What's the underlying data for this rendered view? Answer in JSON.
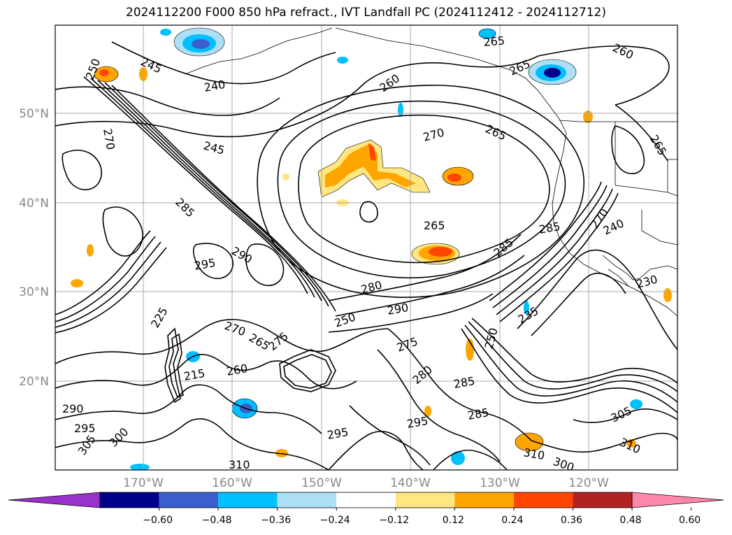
{
  "title": "2024112200 F000 850 hPa refract., IVT Landfall PC (2024112412 - 2024112712)",
  "map": {
    "lat_labels": [
      "50°N",
      "40°N",
      "30°N",
      "20°N"
    ],
    "lon_labels": [
      "170°W",
      "160°W",
      "150°W",
      "140°W",
      "130°W",
      "120°W"
    ],
    "contour_labels": [
      "245",
      "240",
      "250",
      "270",
      "245",
      "260",
      "265",
      "265",
      "265",
      "260",
      "270",
      "265",
      "285",
      "265",
      "290",
      "270",
      "285",
      "285",
      "295",
      "280",
      "290",
      "275",
      "250",
      "285",
      "235",
      "230",
      "240",
      "270",
      "265",
      "275",
      "225",
      "260",
      "290",
      "295",
      "280",
      "305",
      "300",
      "310",
      "310",
      "300",
      "295",
      "310",
      "285",
      "215",
      "250",
      "305",
      "295"
    ]
  },
  "colorbar": {
    "ticks": [
      "−0.60",
      "−0.48",
      "−0.36",
      "−0.24",
      "−0.12",
      "0.12",
      "0.24",
      "0.36",
      "0.48",
      "0.60"
    ],
    "colors": [
      "#9932CC",
      "#00008B",
      "#3A5FCD",
      "#00BFFF",
      "#ADDFF7",
      "#FFFFFF",
      "#FFE680",
      "#FFA500",
      "#FF4500",
      "#B22222",
      "#FF88AA"
    ]
  }
}
